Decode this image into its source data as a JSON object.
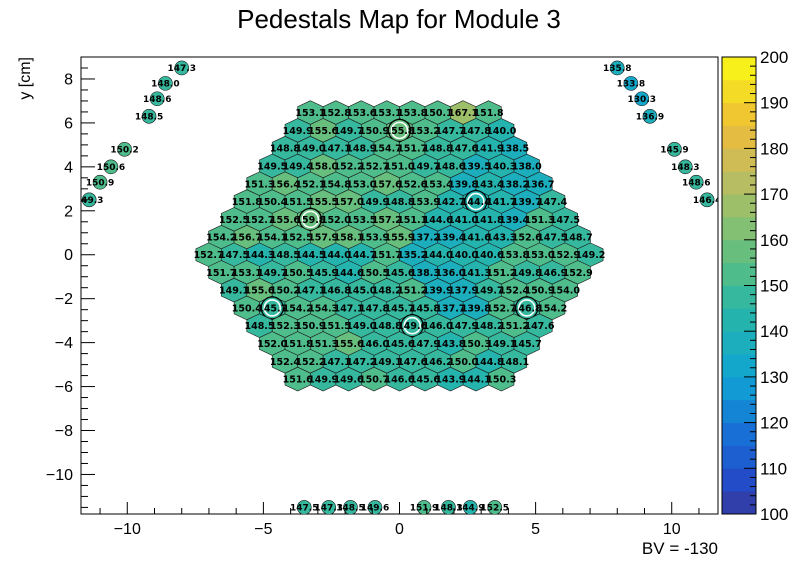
{
  "chart_data": {
    "type": "heatmap",
    "title": "Pedestals Map for Module 3",
    "xlabel": "",
    "ylabel": "y [cm]",
    "annotation": "BV = -130",
    "xlim": [
      -11.7,
      11.7
    ],
    "ylim": [
      -11.8,
      9.0
    ],
    "xticks": [
      -10,
      -5,
      0,
      5,
      10
    ],
    "yticks": [
      -10,
      -8,
      -6,
      -4,
      -2,
      0,
      2,
      4,
      6,
      8
    ],
    "colorbar": {
      "min": 100,
      "max": 200,
      "ticks": [
        100,
        110,
        120,
        130,
        140,
        150,
        160,
        170,
        180,
        190,
        200
      ]
    },
    "grid": false,
    "hex_rows": [
      {
        "y": 6.47,
        "values": [
          "153.1",
          "152.8",
          "153.6",
          "153.1",
          "153.8",
          "150.1",
          "167.1",
          "151.8"
        ],
        "marked": []
      },
      {
        "y": 5.66,
        "values": [
          "149.9",
          "155.6",
          "149.7",
          "150.9",
          "155.8",
          "153.2",
          "147.7",
          "147.8",
          "140.0"
        ],
        "marked": [
          4
        ]
      },
      {
        "y": 4.85,
        "values": [
          "148.8",
          "149.0",
          "147.1",
          "148.9",
          "154.7",
          "151.7",
          "148.8",
          "147.6",
          "141.9",
          "138.5"
        ],
        "marked": []
      },
      {
        "y": 4.04,
        "values": [
          "149.5",
          "149.4",
          "158.0",
          "152.2",
          "152.7",
          "151.0",
          "149.7",
          "148.6",
          "139.5",
          "140.3",
          "138.0"
        ],
        "marked": []
      },
      {
        "y": 3.23,
        "values": [
          "151.3",
          "156.4",
          "152.1",
          "154.8",
          "153.0",
          "157.6",
          "152.6",
          "153.4",
          "139.8",
          "143.4",
          "138.2",
          "136.7"
        ],
        "marked": []
      },
      {
        "y": 2.42,
        "values": [
          "151.8",
          "150.4",
          "151.5",
          "155.5",
          "157.0",
          "149.9",
          "148.8",
          "153.9",
          "142.7",
          "144.4",
          "141.7",
          "139.7",
          "147.4"
        ],
        "marked": [
          9
        ]
      },
      {
        "y": 1.61,
        "values": [
          "152.5",
          "152.7",
          "155.6",
          "159.8",
          "152.0",
          "153.5",
          "157.2",
          "151.1",
          "144.6",
          "141.0",
          "141.8",
          "139.4",
          "151.3",
          "147.5"
        ],
        "marked": [
          3
        ]
      },
      {
        "y": 0.8,
        "values": [
          "154.2",
          "156.7",
          "154.1",
          "152.5",
          "157.9",
          "158.1",
          "153.9",
          "155.9",
          "137.2",
          "139.4",
          "141.6",
          "143.3",
          "152.6",
          "147.5",
          "148.7"
        ],
        "marked": []
      },
      {
        "y": 0.0,
        "values": [
          "152.7",
          "147.5",
          "144.3",
          "148.5",
          "144.5",
          "144.0",
          "144.7",
          "151.7",
          "135.2",
          "144.0",
          "140.0",
          "140.6",
          "153.8",
          "153.0",
          "152.9",
          "149.2"
        ],
        "marked": []
      },
      {
        "y": -0.8,
        "values": [
          "151.7",
          "153.1",
          "149.7",
          "150.5",
          "145.9",
          "144.6",
          "150.5",
          "145.6",
          "138.3",
          "136.0",
          "141.3",
          "151.2",
          "149.8",
          "146.9",
          "152.9"
        ],
        "marked": []
      },
      {
        "y": -1.61,
        "values": [
          "149.1",
          "155.6",
          "150.2",
          "147.1",
          "146.8",
          "145.0",
          "148.2",
          "151.2",
          "139.9",
          "137.9",
          "149.7",
          "152.4",
          "150.9",
          "154.0"
        ],
        "marked": []
      },
      {
        "y": -2.42,
        "values": [
          "150.4",
          "145.7",
          "154.2",
          "154.3",
          "147.1",
          "147.8",
          "145.7",
          "145.8",
          "137.7",
          "139.8",
          "152.7",
          "146.8",
          "154.2"
        ],
        "marked": [
          1,
          11
        ]
      },
      {
        "y": -3.23,
        "values": [
          "148.5",
          "152.3",
          "150.9",
          "151.5",
          "149.0",
          "148.8",
          "149.6",
          "146.0",
          "147.9",
          "148.2",
          "151.2",
          "147.6"
        ],
        "marked": [
          6
        ]
      },
      {
        "y": -4.04,
        "values": [
          "152.0",
          "151.8",
          "151.3",
          "155.6",
          "146.0",
          "145.6",
          "147.9",
          "143.8",
          "150.3",
          "149.1",
          "145.7"
        ],
        "marked": []
      },
      {
        "y": -4.85,
        "values": [
          "152.4",
          "152.2",
          "147.1",
          "147.2",
          "149.1",
          "147.6",
          "146.2",
          "150.0",
          "144.8",
          "148.1"
        ],
        "marked": []
      },
      {
        "y": -5.66,
        "values": [
          "151.6",
          "149.9",
          "149.6",
          "150.7",
          "146.6",
          "145.6",
          "143.9",
          "144.1",
          "150.3"
        ],
        "marked": []
      }
    ],
    "outer_cells": [
      {
        "x": -8.0,
        "y": 8.5,
        "value": "147.3"
      },
      {
        "x": -8.6,
        "y": 7.8,
        "value": "148.0"
      },
      {
        "x": -8.9,
        "y": 7.1,
        "value": "148.6"
      },
      {
        "x": -9.2,
        "y": 6.3,
        "value": "148.5"
      },
      {
        "x": -10.1,
        "y": 4.8,
        "value": "150.2"
      },
      {
        "x": -10.6,
        "y": 4.0,
        "value": "150.6"
      },
      {
        "x": -11.0,
        "y": 3.3,
        "value": "150.9"
      },
      {
        "x": -11.4,
        "y": 2.5,
        "value": "149.3"
      },
      {
        "x": 8.0,
        "y": 8.5,
        "value": "135.8"
      },
      {
        "x": 8.5,
        "y": 7.8,
        "value": "133.8"
      },
      {
        "x": 8.9,
        "y": 7.1,
        "value": "130.3"
      },
      {
        "x": 9.2,
        "y": 6.3,
        "value": "136.9"
      },
      {
        "x": 10.1,
        "y": 4.8,
        "value": "145.9"
      },
      {
        "x": 10.5,
        "y": 4.0,
        "value": "148.3"
      },
      {
        "x": 10.9,
        "y": 3.3,
        "value": "148.6"
      },
      {
        "x": 11.3,
        "y": 2.5,
        "value": "146.4"
      },
      {
        "x": -3.5,
        "y": -11.5,
        "value": "147.5"
      },
      {
        "x": -2.6,
        "y": -11.5,
        "value": "147.3"
      },
      {
        "x": -1.8,
        "y": -11.5,
        "value": "148.5"
      },
      {
        "x": -0.9,
        "y": -11.5,
        "value": "149.6"
      },
      {
        "x": 0.9,
        "y": -11.5,
        "value": "151.9"
      },
      {
        "x": 1.8,
        "y": -11.5,
        "value": "148.3"
      },
      {
        "x": 2.6,
        "y": -11.5,
        "value": "144.9"
      },
      {
        "x": 3.5,
        "y": -11.5,
        "value": "152.5"
      }
    ]
  }
}
